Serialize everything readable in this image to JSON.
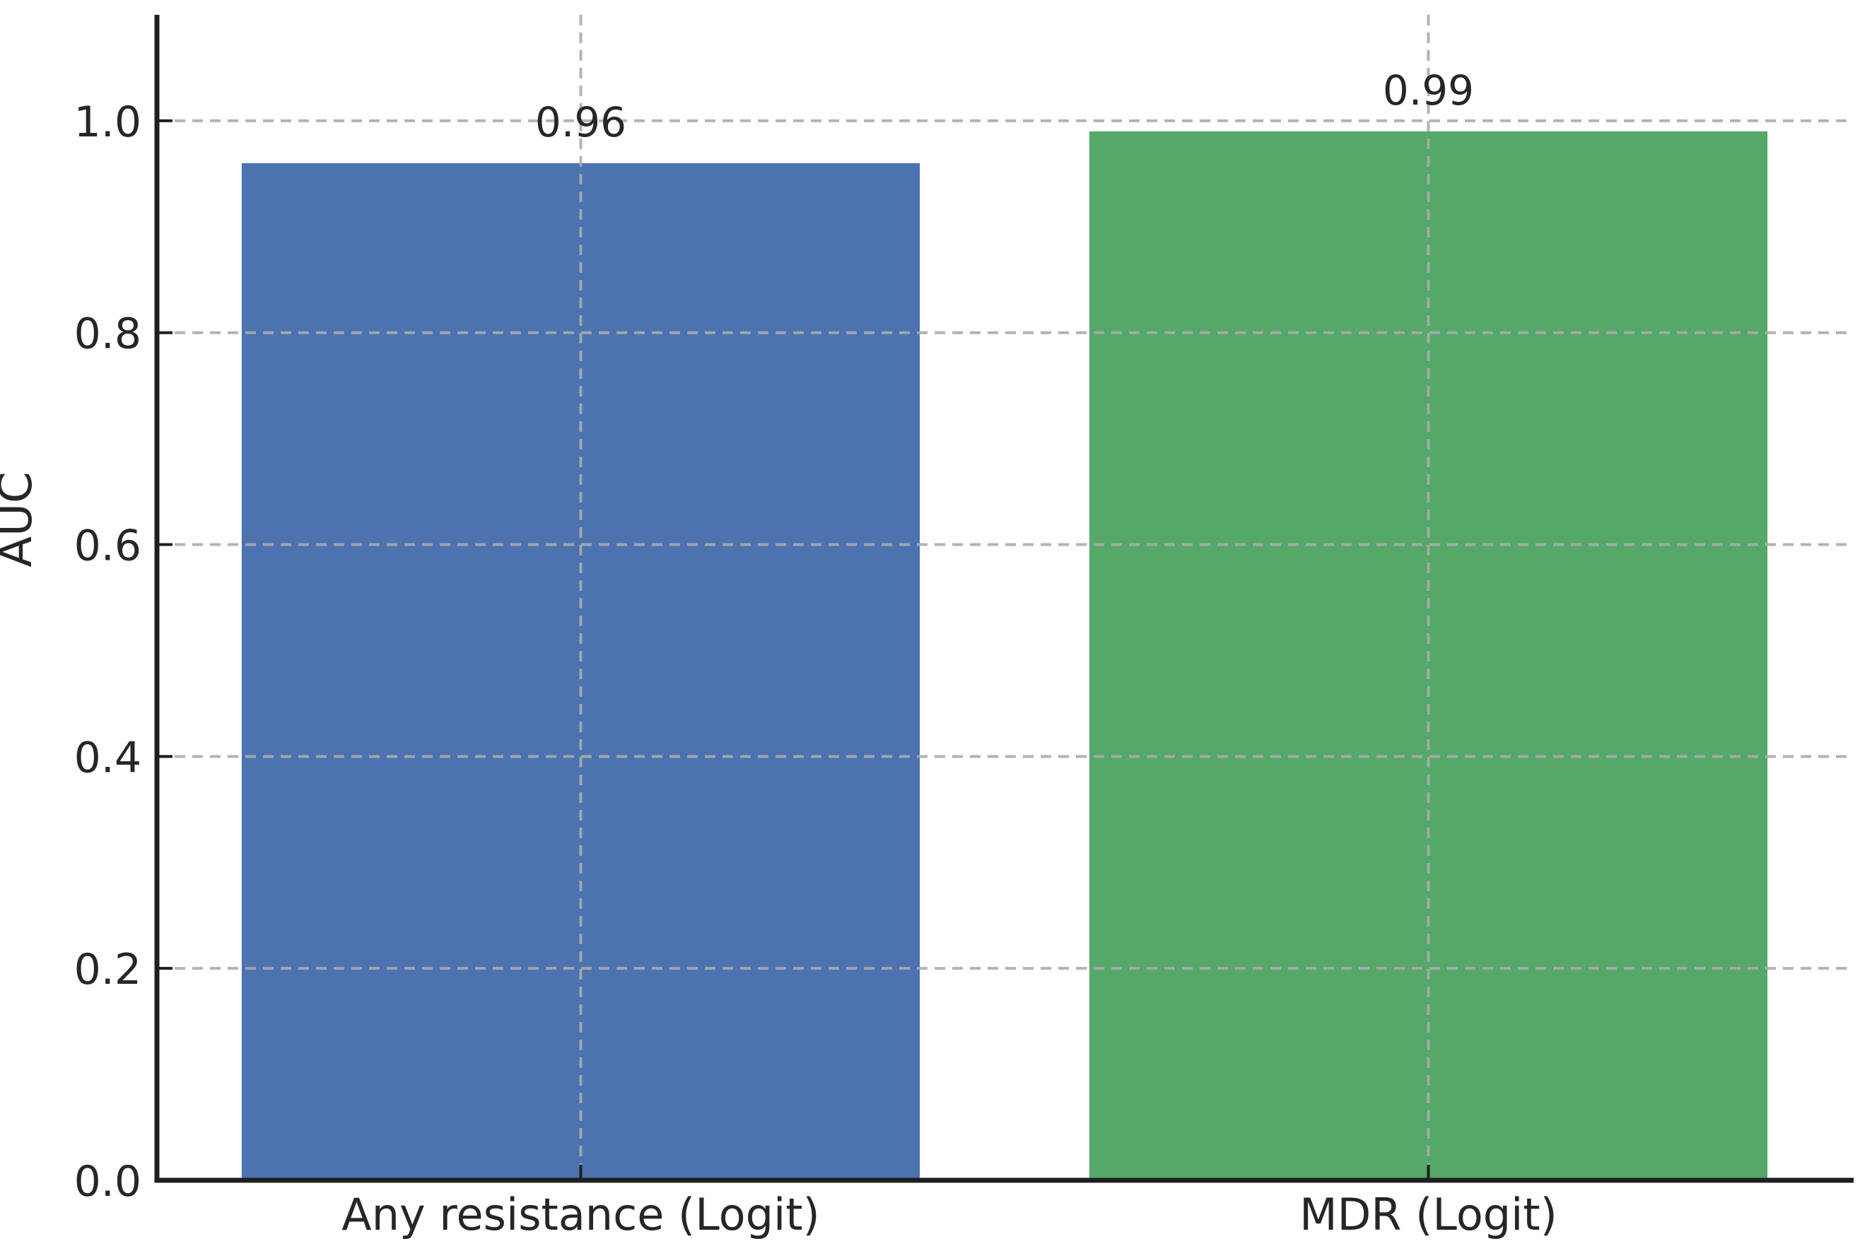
{
  "figure": {
    "background_color": "#ffffff"
  },
  "chart_data": {
    "type": "bar",
    "title": "",
    "categories": [
      "Any resistance (Logit)",
      "MDR (Logit)"
    ],
    "values": [
      0.96,
      0.99
    ],
    "bar_labels": [
      "0.96",
      "0.99"
    ],
    "bar_colors": [
      "#4C72B0",
      "#55A868"
    ],
    "xlabel": "",
    "ylabel": "AUC",
    "ylim": [
      0,
      1.1
    ],
    "yticks": [
      0.0,
      0.2,
      0.4,
      0.6,
      0.8,
      1.0
    ],
    "ytick_labels": [
      "0.0",
      "0.2",
      "0.4",
      "0.6",
      "0.8",
      "1.0"
    ],
    "grid": "on",
    "grid_style": "dashed",
    "grid_color": "#ababab",
    "axis_color": "#1f1f1f",
    "text_color": "#262626",
    "legend_position": "none",
    "bar_width_fraction": 0.8
  }
}
